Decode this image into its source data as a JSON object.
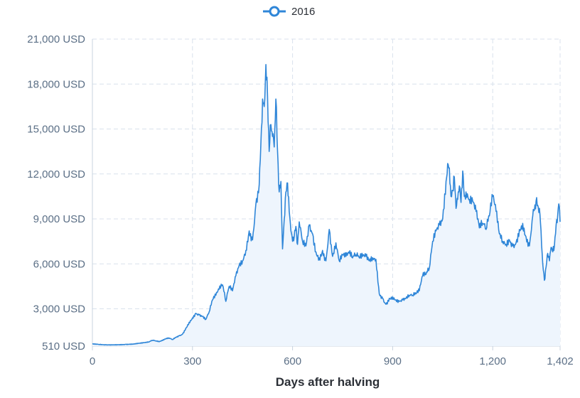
{
  "chart_data": {
    "type": "area",
    "title": "",
    "xlabel": "Days after halving",
    "ylabel": "",
    "xlim": [
      0,
      1402
    ],
    "ylim": [
      510,
      21000
    ],
    "x_ticks": [
      0,
      300,
      600,
      900,
      1200,
      1402
    ],
    "x_tick_labels": [
      "0",
      "300",
      "600",
      "900",
      "1,200",
      "1,402"
    ],
    "y_ticks": [
      510,
      3000,
      6000,
      9000,
      12000,
      15000,
      18000,
      21000
    ],
    "y_tick_labels": [
      "510 USD",
      "3,000 USD",
      "6,000 USD",
      "9,000 USD",
      "12,000 USD",
      "15,000 USD",
      "18,000 USD",
      "21,000 USD"
    ],
    "grid": true,
    "legend_position": "top-center",
    "colors": {
      "line": "#2f86d8",
      "fill": "#eef5fd",
      "grid": "#d8e1ec",
      "axis": "#c8d3df"
    },
    "series": [
      {
        "name": "2016",
        "x": [
          0,
          20,
          40,
          60,
          80,
          100,
          120,
          140,
          160,
          170,
          180,
          190,
          200,
          210,
          220,
          230,
          240,
          250,
          260,
          270,
          280,
          290,
          300,
          310,
          320,
          330,
          340,
          350,
          360,
          370,
          380,
          390,
          400,
          410,
          420,
          430,
          440,
          450,
          460,
          470,
          480,
          490,
          500,
          505,
          510,
          515,
          520,
          525,
          530,
          535,
          540,
          545,
          550,
          555,
          560,
          565,
          570,
          575,
          580,
          585,
          590,
          595,
          600,
          605,
          610,
          615,
          620,
          630,
          640,
          650,
          660,
          670,
          680,
          690,
          700,
          710,
          720,
          730,
          740,
          750,
          760,
          770,
          780,
          790,
          800,
          810,
          820,
          830,
          840,
          850,
          860,
          870,
          880,
          890,
          900,
          910,
          920,
          930,
          940,
          950,
          960,
          970,
          980,
          990,
          1000,
          1010,
          1020,
          1030,
          1040,
          1050,
          1060,
          1065,
          1070,
          1075,
          1080,
          1085,
          1090,
          1095,
          1100,
          1105,
          1110,
          1115,
          1120,
          1130,
          1140,
          1150,
          1160,
          1170,
          1180,
          1190,
          1200,
          1210,
          1220,
          1230,
          1240,
          1250,
          1260,
          1270,
          1280,
          1290,
          1300,
          1310,
          1320,
          1325,
          1330,
          1335,
          1340,
          1345,
          1350,
          1355,
          1360,
          1365,
          1370,
          1375,
          1380,
          1385,
          1390,
          1395,
          1398,
          1402
        ],
        "values": [
          650,
          620,
          590,
          600,
          610,
          630,
          650,
          700,
          750,
          790,
          900,
          850,
          800,
          880,
          1000,
          1050,
          950,
          1100,
          1200,
          1300,
          1700,
          2100,
          2400,
          2700,
          2600,
          2500,
          2300,
          2800,
          3600,
          3900,
          4300,
          4600,
          3500,
          4500,
          4200,
          5200,
          5900,
          6200,
          6900,
          8200,
          7600,
          10000,
          11300,
          14000,
          17000,
          16500,
          19300,
          17200,
          13500,
          15300,
          14500,
          13800,
          17000,
          13500,
          10800,
          11500,
          7000,
          9000,
          10800,
          11400,
          9500,
          8200,
          7500,
          7800,
          8500,
          7300,
          8800,
          7500,
          7200,
          8600,
          8000,
          6800,
          6400,
          6900,
          6200,
          8300,
          6500,
          7400,
          6200,
          6600,
          6500,
          6700,
          6400,
          6600,
          6400,
          6500,
          6500,
          6200,
          6400,
          6300,
          4000,
          3700,
          3300,
          3700,
          3800,
          3600,
          3500,
          3600,
          3700,
          3900,
          3900,
          4000,
          4200,
          5200,
          5300,
          5700,
          7500,
          8200,
          8600,
          9000,
          11500,
          12700,
          12400,
          10500,
          10900,
          11800,
          9700,
          10300,
          11200,
          10100,
          12200,
          10500,
          10800,
          10300,
          10200,
          9500,
          8400,
          8700,
          8300,
          9200,
          10500,
          9500,
          8000,
          7500,
          7300,
          7600,
          7200,
          7400,
          8300,
          8700,
          7800,
          7200,
          9200,
          9600,
          10200,
          9900,
          9700,
          8200,
          6000,
          4900,
          5800,
          6700,
          6200,
          7100,
          6800,
          7200,
          8600,
          9300,
          10000,
          8800
        ]
      }
    ]
  }
}
